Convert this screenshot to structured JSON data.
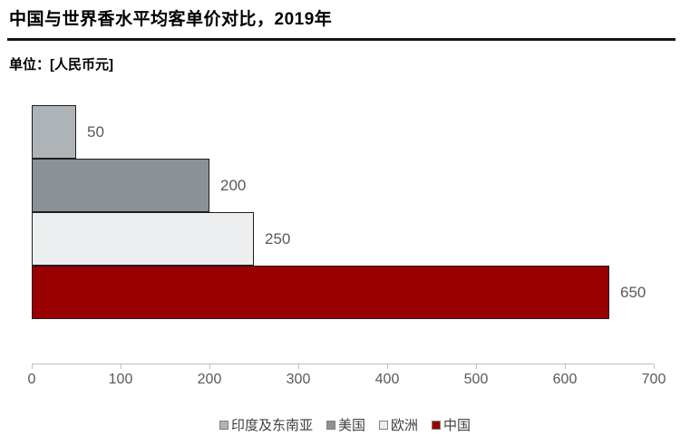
{
  "header": {
    "title": "中国与世界香水平均客单价对比，2019年",
    "unit_label": "单位：[人民币元]"
  },
  "chart_data": {
    "type": "bar",
    "orientation": "horizontal",
    "title": "中国与世界香水平均客单价对比，2019年",
    "unit": "人民币元",
    "year": "2019",
    "categories": [
      "印度及东南亚",
      "美国",
      "欧洲",
      "中国"
    ],
    "slugs": [
      "india-southeast-asia",
      "usa",
      "europe",
      "china"
    ],
    "values": [
      50,
      200,
      250,
      650
    ],
    "colors": [
      "#aeb3b8",
      "#8a9197",
      "#eceef0",
      "#9a0000"
    ],
    "value_labels": [
      "50",
      "200",
      "250",
      "650"
    ],
    "xlim": [
      0,
      700
    ],
    "x_ticks": [
      "0",
      "100",
      "200",
      "300",
      "400",
      "500",
      "600",
      "700"
    ],
    "grid": false,
    "legend_position": "bottom",
    "legend": [
      {
        "label": "印度及东南亚",
        "color": "#aeb3b8"
      },
      {
        "label": "美国",
        "color": "#8a9197"
      },
      {
        "label": "欧洲",
        "color": "#eceef0"
      },
      {
        "label": "中国",
        "color": "#9a0000"
      }
    ]
  },
  "colors": {
    "bar_border": "#1f1f1f",
    "axis_line": "#bfbfbf",
    "tick_label": "#595959",
    "value_label": "#595959",
    "legend_text": "#404040",
    "title_text": "#000000",
    "divider": "#141414",
    "background": "#ffffff"
  }
}
